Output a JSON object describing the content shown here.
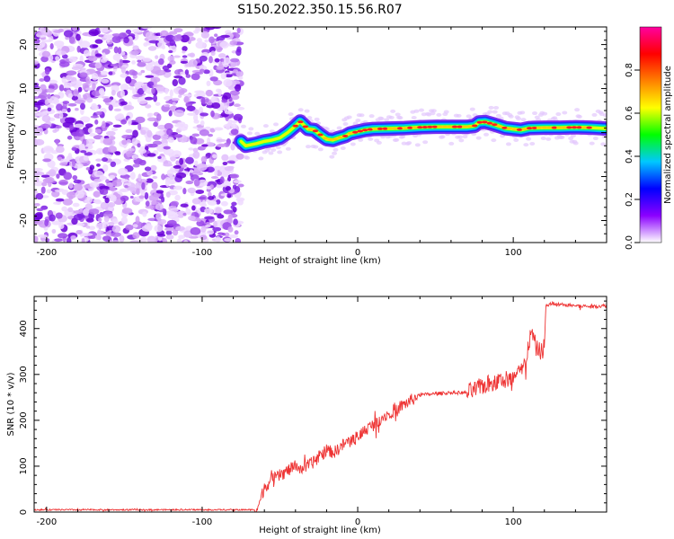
{
  "figure": {
    "title": "S150.2022.350.15.56.R07"
  },
  "chart_data": [
    {
      "type": "heatmap",
      "title": "",
      "xlabel": "Height of straight line (km)",
      "ylabel": "Frequency (Hz)",
      "xlim": [
        -208,
        160
      ],
      "ylim": [
        -25,
        24
      ],
      "x_ticks": [
        -200,
        -100,
        0,
        100
      ],
      "y_ticks": [
        20,
        10,
        0,
        -10,
        -20
      ],
      "noise_region_x": [
        -208,
        -75
      ],
      "signal_track": {
        "x": [
          -75,
          -72,
          -65,
          -60,
          -55,
          -50,
          -45,
          -40,
          -37,
          -32,
          -28,
          -24,
          -20,
          -16,
          -12,
          -8,
          -5,
          0,
          5,
          10,
          20,
          30,
          40,
          50,
          60,
          70,
          75,
          78,
          82,
          88,
          95,
          100,
          105,
          110,
          120,
          130,
          140,
          150,
          160
        ],
        "y": [
          -2,
          -3,
          -2.5,
          -2,
          -1.7,
          -1.2,
          0,
          1.5,
          2.5,
          0.8,
          0.6,
          -0.5,
          -1.5,
          -1.7,
          -1.2,
          -0.8,
          -0.2,
          0.2,
          0.6,
          0.8,
          0.9,
          1.0,
          1.2,
          1.3,
          1.3,
          1.3,
          1.5,
          2.3,
          2.4,
          1.8,
          1.0,
          0.8,
          0.6,
          1.0,
          1.1,
          1.1,
          1.2,
          1.1,
          0.9
        ]
      },
      "colorbar": {
        "label": "Normalized spectral amplitude",
        "range": [
          0,
          1
        ],
        "ticks": [
          "0.0",
          "0.2",
          "0.4",
          "0.6",
          "0.8"
        ],
        "colors": [
          "#ffffff",
          "#8b00ff",
          "#0000ff",
          "#00c8ff",
          "#00ff00",
          "#ffff00",
          "#ff8000",
          "#ff0000",
          "#ff00a0"
        ]
      }
    },
    {
      "type": "line",
      "title": "",
      "xlabel": "Height of straight line (km)",
      "ylabel": "SNR (10 * v/v)",
      "xlim": [
        -208,
        160
      ],
      "ylim": [
        0,
        470
      ],
      "x_ticks": [
        -200,
        -100,
        0,
        100
      ],
      "y_ticks": [
        0,
        100,
        200,
        300,
        400
      ],
      "series": [
        {
          "color": "#ee3333",
          "x": [
            -208,
            -66,
            -63,
            -60,
            -55,
            -50,
            -45,
            -40,
            -35,
            -30,
            -25,
            -20,
            -15,
            -10,
            -5,
            0,
            5,
            10,
            15,
            20,
            25,
            30,
            35,
            40,
            50,
            60,
            70,
            75,
            80,
            85,
            90,
            95,
            100,
            103,
            106,
            108,
            110,
            112,
            115,
            118,
            120,
            121,
            125,
            130,
            140,
            150,
            160
          ],
          "y": [
            5,
            5,
            20,
            55,
            70,
            80,
            90,
            100,
            95,
            105,
            120,
            135,
            130,
            145,
            155,
            165,
            180,
            190,
            205,
            215,
            225,
            235,
            245,
            255,
            258,
            260,
            260,
            265,
            275,
            280,
            285,
            290,
            290,
            300,
            310,
            330,
            370,
            390,
            355,
            350,
            360,
            450,
            455,
            452,
            450,
            448,
            450
          ]
        }
      ]
    }
  ]
}
